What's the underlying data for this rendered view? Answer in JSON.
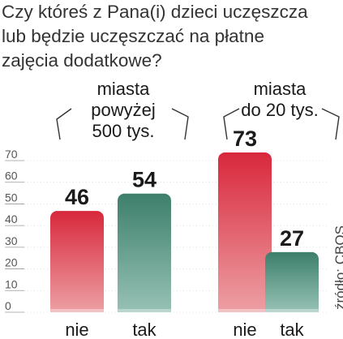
{
  "question": {
    "lines": [
      "Czy któreś z Pana(i) dzieci uczęszcza",
      "lub będzie uczęszczać na płatne",
      "zajęcia dodatkowe?"
    ]
  },
  "source": "źródło: CBOS",
  "colors": {
    "red_top": "#d8283c",
    "red_bottom": "#eda0a4",
    "green_top": "#3d7f6b",
    "green_bottom": "#97c2b5",
    "grid": "#9a9a9a",
    "text": "#1a1a1a"
  },
  "chart_data": {
    "type": "bar",
    "ylim": [
      0,
      70
    ],
    "yticks": [
      0,
      10,
      20,
      30,
      40,
      50,
      60,
      70
    ],
    "grid": false,
    "groups": [
      {
        "label_lines": [
          "miasta",
          "powyżej",
          "500 tys."
        ],
        "categories": [
          "nie",
          "tak"
        ],
        "values": [
          46,
          54
        ],
        "value_labels": [
          "46",
          "54"
        ]
      },
      {
        "label_lines": [
          "miasta",
          "do 20 tys."
        ],
        "categories": [
          "nie",
          "tak"
        ],
        "values": [
          73,
          27
        ],
        "value_labels": [
          "73",
          "27"
        ]
      }
    ]
  }
}
